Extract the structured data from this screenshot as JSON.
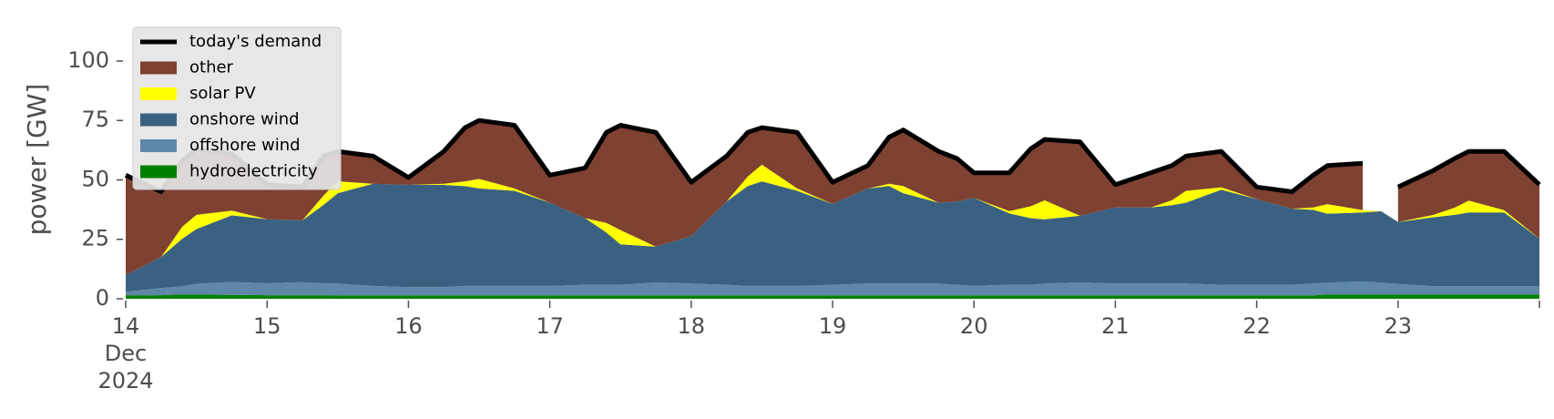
{
  "chart_data": {
    "type": "area",
    "ylabel": "power [GW]",
    "ylim": [
      0,
      118
    ],
    "xlim": [
      14,
      24
    ],
    "yticks": [
      0,
      25,
      50,
      75,
      100
    ],
    "xtick_labels": [
      {
        "day": 14,
        "lines": [
          "14",
          "Dec",
          "2024"
        ]
      },
      {
        "day": 15,
        "lines": [
          "15"
        ]
      },
      {
        "day": 16,
        "lines": [
          "16"
        ]
      },
      {
        "day": 17,
        "lines": [
          "17"
        ]
      },
      {
        "day": 18,
        "lines": [
          "18"
        ]
      },
      {
        "day": 19,
        "lines": [
          "19"
        ]
      },
      {
        "day": 20,
        "lines": [
          "20"
        ]
      },
      {
        "day": 21,
        "lines": [
          "21"
        ]
      },
      {
        "day": 22,
        "lines": [
          "22"
        ]
      },
      {
        "day": 23,
        "lines": [
          "23"
        ]
      }
    ],
    "grid": false,
    "legend_position": "top-left",
    "legend": [
      {
        "label": "today's demand",
        "kind": "line",
        "color": "#000000"
      },
      {
        "label": "other",
        "kind": "area",
        "color": "#7f4131"
      },
      {
        "label": "solar PV",
        "kind": "area",
        "color": "#ffff00"
      },
      {
        "label": "onshore wind",
        "kind": "area",
        "color": "#3b6182"
      },
      {
        "label": "offshore wind",
        "kind": "area",
        "color": "#5f87a8"
      },
      {
        "label": "hydroelectricity",
        "kind": "area",
        "color": "#008000"
      }
    ],
    "colors": {
      "demand": "#000000",
      "other": "#7f4131",
      "solar": "#ffff00",
      "onshore": "#3b6182",
      "offshore": "#5f87a8",
      "hydro": "#008000",
      "axis_text": "#4d4d4d"
    },
    "x": [
      14.0,
      14.25,
      14.4,
      14.5,
      14.75,
      15.0,
      15.25,
      15.4,
      15.5,
      15.75,
      16.0,
      16.25,
      16.4,
      16.5,
      16.75,
      17.0,
      17.25,
      17.4,
      17.5,
      17.75,
      18.0,
      18.25,
      18.4,
      18.5,
      18.75,
      19.0,
      19.25,
      19.4,
      19.5,
      19.75,
      19.88,
      20.0,
      20.25,
      20.4,
      20.5,
      20.75,
      21.0,
      21.25,
      21.4,
      21.5,
      21.75,
      22.0,
      22.25,
      22.4,
      22.5,
      22.75,
      22.88,
      23.0,
      23.25,
      23.4,
      23.5,
      23.75,
      24.0
    ],
    "series": {
      "hydro": [
        1.5,
        1.5,
        1.8,
        1.8,
        1.6,
        1.5,
        1.5,
        1.5,
        1.4,
        1.4,
        1.4,
        1.4,
        1.4,
        1.4,
        1.4,
        1.4,
        1.4,
        1.4,
        1.4,
        1.4,
        1.4,
        1.4,
        1.4,
        1.4,
        1.4,
        1.4,
        1.4,
        1.4,
        1.4,
        1.4,
        1.4,
        1.4,
        1.4,
        1.4,
        1.4,
        1.4,
        1.4,
        1.4,
        1.4,
        1.4,
        1.4,
        1.4,
        1.4,
        1.4,
        1.8,
        1.8,
        1.8,
        1.8,
        1.8,
        1.8,
        1.8,
        1.8,
        1.8
      ],
      "offshore": [
        1.5,
        3.0,
        3.5,
        4.5,
        5.5,
        5.0,
        5.5,
        5.0,
        5.0,
        4.0,
        3.5,
        3.5,
        4.0,
        4.0,
        4.0,
        4.0,
        4.5,
        4.5,
        4.5,
        5.5,
        5.0,
        4.5,
        4.0,
        4.0,
        4.0,
        4.5,
        5.0,
        5.0,
        5.0,
        5.0,
        4.5,
        4.0,
        4.5,
        4.5,
        5.0,
        5.5,
        5.0,
        5.0,
        5.0,
        5.0,
        4.5,
        4.5,
        4.5,
        5.0,
        5.0,
        5.5,
        5.0,
        4.5,
        3.5,
        3.5,
        3.5,
        3.5,
        3.5
      ],
      "onshore": [
        7,
        13,
        20,
        23,
        28,
        27,
        26,
        33,
        38,
        43,
        43,
        43,
        42,
        41,
        40,
        35,
        28,
        22,
        17,
        15,
        20,
        35,
        42,
        44,
        40,
        34,
        40,
        41,
        38,
        34,
        35,
        37,
        30,
        28,
        27,
        28,
        32,
        32,
        33,
        34,
        40,
        36,
        32,
        31,
        29,
        29,
        30,
        26,
        29,
        30,
        31,
        31,
        20
      ],
      "solar": [
        0,
        0,
        5,
        6,
        2,
        0,
        0,
        4,
        5,
        0,
        0,
        0.5,
        2,
        4,
        1,
        0,
        0,
        4,
        6,
        0,
        0,
        0,
        4,
        7,
        1,
        0,
        0,
        1,
        3,
        0,
        0,
        0,
        1,
        5,
        8,
        0,
        0,
        0,
        2,
        5,
        1,
        0,
        0,
        1,
        4,
        1,
        0,
        0,
        1,
        3,
        5,
        1,
        0
      ],
      "demand": [
        52,
        45,
        58,
        63,
        61,
        48,
        47,
        60,
        62,
        60,
        51,
        62,
        72,
        75,
        73,
        52,
        55,
        70,
        73,
        70,
        49,
        60,
        70,
        72,
        70,
        49,
        56,
        68,
        71,
        62,
        59,
        53,
        53,
        63,
        67,
        66,
        48,
        53,
        56,
        60,
        62,
        47,
        45,
        52,
        56,
        57,
        null,
        47,
        54,
        59,
        62,
        62,
        48
      ]
    }
  }
}
